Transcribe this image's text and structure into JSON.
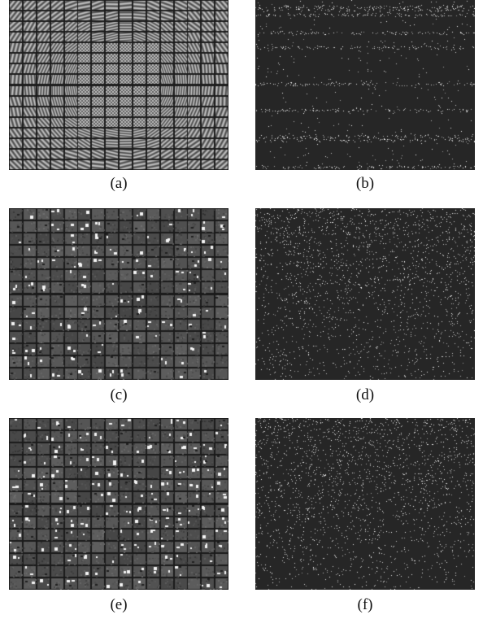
{
  "figure": {
    "panels": [
      {
        "id": "a",
        "caption": "(a)",
        "content": "dictionary-atoms",
        "style": "gabor-stripes"
      },
      {
        "id": "b",
        "caption": "(b)",
        "content": "sparse-codes",
        "style": "banded"
      },
      {
        "id": "c",
        "caption": "(c)",
        "content": "dictionary-atoms",
        "style": "localized-blobs"
      },
      {
        "id": "d",
        "caption": "(d)",
        "content": "sparse-codes",
        "style": "dense-noise"
      },
      {
        "id": "e",
        "caption": "(e)",
        "content": "dictionary-atoms",
        "style": "localized-blobs"
      },
      {
        "id": "f",
        "caption": "(f)",
        "content": "sparse-codes",
        "style": "dense-noise"
      }
    ]
  }
}
